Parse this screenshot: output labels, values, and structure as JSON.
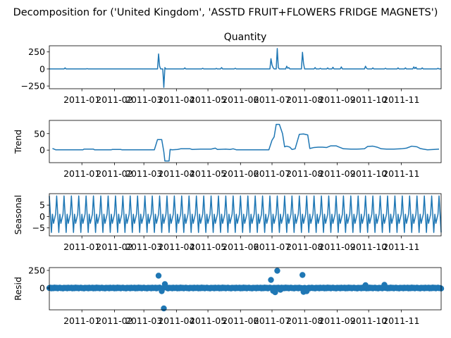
{
  "chart_data": {
    "type": "line",
    "suptitle": "Decomposition for ('United Kingdom', 'ASSTD FRUIT+FLOWERS FRIDGE MAGNETS')",
    "series_color": "#1f77b4",
    "x_ticks": [
      "2011-01",
      "2011-02",
      "2011-03",
      "2011-04",
      "2011-05",
      "2011-06",
      "2011-07",
      "2011-08",
      "2011-09",
      "2011-10",
      "2011-11"
    ],
    "x_range": [
      "2010-12-01",
      "2011-12-09"
    ],
    "grid": false,
    "panels": [
      {
        "id": "observed",
        "type": "line",
        "title": "Quantity",
        "ylabel": "",
        "ylim": [
          -290,
          340
        ],
        "yticks": [
          -250,
          0,
          250
        ],
        "ytick_labels": [
          "−250",
          "0",
          "250"
        ],
        "points": [
          [
            "2010-12-01",
            0
          ],
          [
            "2010-12-15",
            0
          ],
          [
            "2010-12-16",
            15
          ],
          [
            "2010-12-17",
            0
          ],
          [
            "2011-01-05",
            0
          ],
          [
            "2011-01-06",
            5
          ],
          [
            "2011-01-07",
            0
          ],
          [
            "2011-03-14",
            0
          ],
          [
            "2011-03-15",
            220
          ],
          [
            "2011-03-16",
            40
          ],
          [
            "2011-03-17",
            0
          ],
          [
            "2011-03-19",
            0
          ],
          [
            "2011-03-20",
            -270
          ],
          [
            "2011-03-21",
            20
          ],
          [
            "2011-03-22",
            0
          ],
          [
            "2011-04-08",
            0
          ],
          [
            "2011-04-09",
            15
          ],
          [
            "2011-04-10",
            0
          ],
          [
            "2011-04-25",
            0
          ],
          [
            "2011-04-26",
            10
          ],
          [
            "2011-04-27",
            0
          ],
          [
            "2011-05-08",
            0
          ],
          [
            "2011-05-09",
            8
          ],
          [
            "2011-05-10",
            0
          ],
          [
            "2011-05-13",
            0
          ],
          [
            "2011-05-14",
            20
          ],
          [
            "2011-05-15",
            0
          ],
          [
            "2011-05-26",
            0
          ],
          [
            "2011-05-27",
            10
          ],
          [
            "2011-05-28",
            0
          ],
          [
            "2011-06-29",
            0
          ],
          [
            "2011-06-30",
            150
          ],
          [
            "2011-07-01",
            60
          ],
          [
            "2011-07-02",
            20
          ],
          [
            "2011-07-03",
            0
          ],
          [
            "2011-07-05",
            0
          ],
          [
            "2011-07-06",
            300
          ],
          [
            "2011-07-07",
            20
          ],
          [
            "2011-07-08",
            0
          ],
          [
            "2011-07-14",
            0
          ],
          [
            "2011-07-15",
            40
          ],
          [
            "2011-07-16",
            10
          ],
          [
            "2011-07-17",
            20
          ],
          [
            "2011-07-18",
            0
          ],
          [
            "2011-07-29",
            0
          ],
          [
            "2011-07-30",
            245
          ],
          [
            "2011-07-31",
            80
          ],
          [
            "2011-08-01",
            0
          ],
          [
            "2011-08-10",
            0
          ],
          [
            "2011-08-11",
            20
          ],
          [
            "2011-08-12",
            0
          ],
          [
            "2011-08-15",
            0
          ],
          [
            "2011-08-16",
            10
          ],
          [
            "2011-08-17",
            0
          ],
          [
            "2011-08-22",
            0
          ],
          [
            "2011-08-23",
            15
          ],
          [
            "2011-08-24",
            0
          ],
          [
            "2011-08-27",
            0
          ],
          [
            "2011-08-28",
            25
          ],
          [
            "2011-08-29",
            0
          ],
          [
            "2011-09-04",
            0
          ],
          [
            "2011-09-05",
            30
          ],
          [
            "2011-09-06",
            0
          ],
          [
            "2011-09-27",
            0
          ],
          [
            "2011-09-28",
            40
          ],
          [
            "2011-09-29",
            10
          ],
          [
            "2011-09-30",
            0
          ],
          [
            "2011-10-04",
            0
          ],
          [
            "2011-10-05",
            15
          ],
          [
            "2011-10-06",
            0
          ],
          [
            "2011-10-16",
            0
          ],
          [
            "2011-10-17",
            10
          ],
          [
            "2011-10-18",
            0
          ],
          [
            "2011-10-28",
            0
          ],
          [
            "2011-10-29",
            15
          ],
          [
            "2011-10-30",
            0
          ],
          [
            "2011-11-04",
            0
          ],
          [
            "2011-11-05",
            15
          ],
          [
            "2011-11-06",
            0
          ],
          [
            "2011-11-12",
            0
          ],
          [
            "2011-11-13",
            30
          ],
          [
            "2011-11-14",
            5
          ],
          [
            "2011-11-15",
            25
          ],
          [
            "2011-11-16",
            0
          ],
          [
            "2011-11-20",
            0
          ],
          [
            "2011-11-21",
            15
          ],
          [
            "2011-11-22",
            0
          ],
          [
            "2011-12-05",
            0
          ],
          [
            "2011-12-06",
            10
          ],
          [
            "2011-12-07",
            0
          ],
          [
            "2011-12-09",
            0
          ]
        ]
      },
      {
        "id": "trend",
        "type": "line",
        "title": "",
        "ylabel": "Trend",
        "ylim": [
          -38,
          90
        ],
        "yticks": [
          0,
          50
        ],
        "ytick_labels": [
          "0",
          "50"
        ],
        "points": [
          [
            "2010-12-04",
            5
          ],
          [
            "2010-12-07",
            1
          ],
          [
            "2011-01-02",
            1
          ],
          [
            "2011-01-03",
            3
          ],
          [
            "2011-01-12",
            3
          ],
          [
            "2011-01-13",
            1
          ],
          [
            "2011-01-29",
            1
          ],
          [
            "2011-01-30",
            2
          ],
          [
            "2011-02-07",
            2
          ],
          [
            "2011-02-08",
            1
          ],
          [
            "2011-03-11",
            1
          ],
          [
            "2011-03-14",
            32
          ],
          [
            "2011-03-18",
            32
          ],
          [
            "2011-03-20",
            -5
          ],
          [
            "2011-03-21",
            -33
          ],
          [
            "2011-03-25",
            -33
          ],
          [
            "2011-03-26",
            2
          ],
          [
            "2011-03-28",
            1
          ],
          [
            "2011-04-02",
            2
          ],
          [
            "2011-04-05",
            4
          ],
          [
            "2011-04-14",
            4
          ],
          [
            "2011-04-16",
            2
          ],
          [
            "2011-04-24",
            3
          ],
          [
            "2011-05-04",
            3
          ],
          [
            "2011-05-08",
            6
          ],
          [
            "2011-05-10",
            2
          ],
          [
            "2011-05-18",
            3
          ],
          [
            "2011-05-22",
            2
          ],
          [
            "2011-05-25",
            4
          ],
          [
            "2011-05-28",
            1
          ],
          [
            "2011-06-28",
            1
          ],
          [
            "2011-07-01",
            30
          ],
          [
            "2011-07-03",
            40
          ],
          [
            "2011-07-05",
            78
          ],
          [
            "2011-07-08",
            78
          ],
          [
            "2011-07-11",
            50
          ],
          [
            "2011-07-13",
            10
          ],
          [
            "2011-07-15",
            12
          ],
          [
            "2011-07-18",
            9
          ],
          [
            "2011-07-20",
            2
          ],
          [
            "2011-07-23",
            4
          ],
          [
            "2011-07-27",
            48
          ],
          [
            "2011-07-31",
            49
          ],
          [
            "2011-08-04",
            46
          ],
          [
            "2011-08-06",
            5
          ],
          [
            "2011-08-10",
            8
          ],
          [
            "2011-08-14",
            9
          ],
          [
            "2011-08-18",
            9
          ],
          [
            "2011-08-22",
            8
          ],
          [
            "2011-08-26",
            13
          ],
          [
            "2011-08-31",
            13
          ],
          [
            "2011-09-03",
            9
          ],
          [
            "2011-09-07",
            4
          ],
          [
            "2011-09-14",
            3
          ],
          [
            "2011-09-20",
            3
          ],
          [
            "2011-09-27",
            4
          ],
          [
            "2011-09-30",
            11
          ],
          [
            "2011-10-05",
            12
          ],
          [
            "2011-10-09",
            9
          ],
          [
            "2011-10-13",
            4
          ],
          [
            "2011-10-18",
            3
          ],
          [
            "2011-10-25",
            3
          ],
          [
            "2011-11-01",
            4
          ],
          [
            "2011-11-06",
            6
          ],
          [
            "2011-11-11",
            12
          ],
          [
            "2011-11-16",
            10
          ],
          [
            "2011-11-19",
            5
          ],
          [
            "2011-11-22",
            3
          ],
          [
            "2011-11-26",
            1
          ],
          [
            "2011-12-02",
            2
          ],
          [
            "2011-12-07",
            3
          ]
        ]
      },
      {
        "id": "seasonal",
        "type": "line",
        "title": "",
        "ylabel": "Seasonal",
        "ylim": [
          -8.5,
          10
        ],
        "yticks": [
          -5,
          0,
          5
        ],
        "ytick_labels": [
          "−5",
          "0",
          "5"
        ],
        "period_days": 7,
        "weekly_pattern": [
          9,
          1,
          -7,
          1,
          -3,
          -1,
          1
        ]
      },
      {
        "id": "resid",
        "type": "scatter",
        "title": "",
        "ylabel": "Resid",
        "ylim": [
          -310,
          290
        ],
        "yticks": [
          0,
          250
        ],
        "ytick_labels": [
          "0",
          "250"
        ],
        "baseline_range": [
          "2010-12-01",
          "2011-12-09"
        ],
        "baseline_step_days": 1,
        "baseline_scatter": [
          0,
          5,
          -6,
          3,
          -4,
          7,
          -2,
          4,
          -5,
          2,
          6,
          -3,
          1,
          -7,
          4,
          -1,
          3,
          -5,
          6,
          -2
        ],
        "outliers": [
          [
            "2011-03-15",
            175
          ],
          [
            "2011-03-18",
            -45
          ],
          [
            "2011-03-20",
            -290
          ],
          [
            "2011-03-21",
            55
          ],
          [
            "2011-03-22",
            15
          ],
          [
            "2011-06-30",
            115
          ],
          [
            "2011-07-02",
            -40
          ],
          [
            "2011-07-04",
            -60
          ],
          [
            "2011-07-06",
            245
          ],
          [
            "2011-07-09",
            -25
          ],
          [
            "2011-07-30",
            185
          ],
          [
            "2011-07-31",
            -55
          ],
          [
            "2011-08-03",
            -45
          ],
          [
            "2011-09-28",
            40
          ],
          [
            "2011-10-16",
            45
          ]
        ]
      }
    ]
  }
}
